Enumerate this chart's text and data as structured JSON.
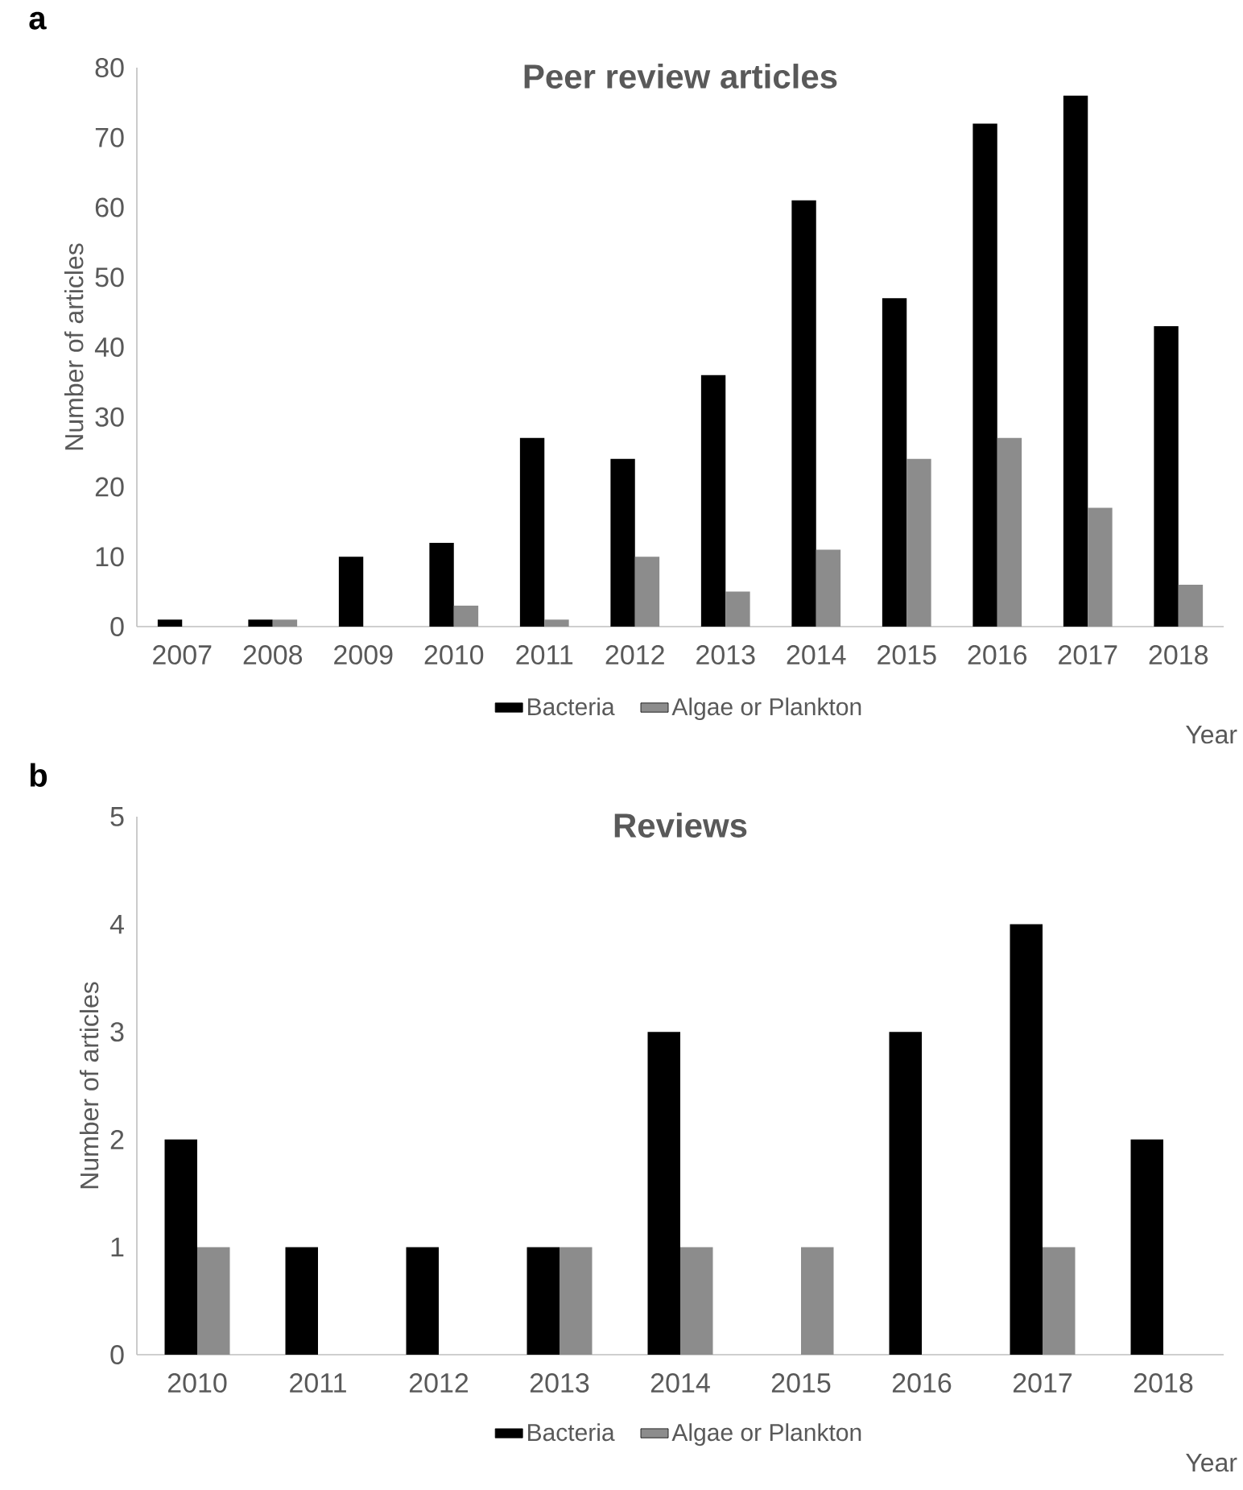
{
  "chart_data": [
    {
      "type": "bar",
      "title": "Peer review articles",
      "xlabel": "Year",
      "ylabel": "Number of articles",
      "annotations": [
        "a"
      ],
      "categories": [
        "2007",
        "2008",
        "2009",
        "2010",
        "2011",
        "2012",
        "2013",
        "2014",
        "2015",
        "2016",
        "2017",
        "2018"
      ],
      "series": [
        {
          "name": "Bacteria",
          "color": "#000000",
          "values": [
            1,
            1,
            10,
            12,
            27,
            24,
            36,
            61,
            47,
            72,
            76,
            43
          ]
        },
        {
          "name": "Algae or Plankton",
          "color": "#8c8c8c",
          "values": [
            0,
            1,
            0,
            3,
            1,
            10,
            5,
            11,
            24,
            27,
            17,
            6
          ]
        }
      ],
      "ylim": [
        0,
        80
      ],
      "yticks": [
        0,
        10,
        20,
        30,
        40,
        50,
        60,
        70,
        80
      ],
      "legend": "bottom"
    },
    {
      "type": "bar",
      "title": "Reviews",
      "xlabel": "Year",
      "ylabel": "Number of articles",
      "annotations": [
        "b"
      ],
      "categories": [
        "2010",
        "2011",
        "2012",
        "2013",
        "2014",
        "2015",
        "2016",
        "2017",
        "2018"
      ],
      "series": [
        {
          "name": "Bacteria",
          "color": "#000000",
          "values": [
            2,
            1,
            1,
            1,
            3,
            0,
            3,
            4,
            2
          ]
        },
        {
          "name": "Algae or Plankton",
          "color": "#8c8c8c",
          "values": [
            1,
            0,
            0,
            1,
            1,
            1,
            0,
            1,
            0
          ]
        }
      ],
      "ylim": [
        0,
        5
      ],
      "yticks": [
        0,
        1,
        2,
        3,
        4,
        5
      ],
      "legend": "bottom"
    }
  ]
}
